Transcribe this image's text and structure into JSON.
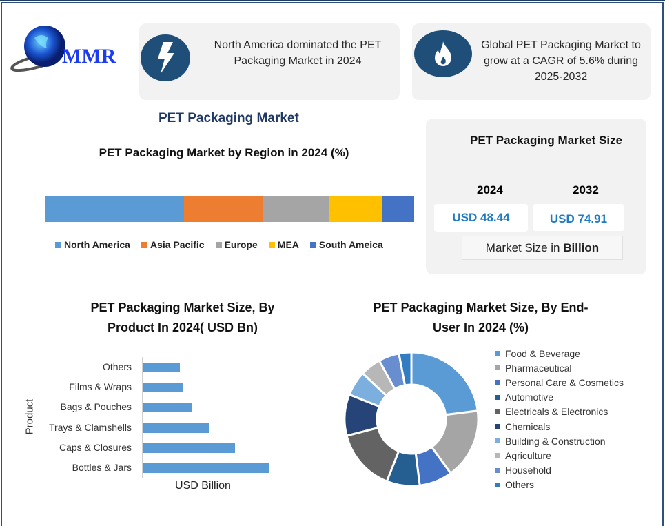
{
  "logo": {
    "text": "MMR"
  },
  "cards": [
    {
      "icon": "lightning-icon",
      "text": "North America dominated the PET Packaging Market in 2024"
    },
    {
      "icon": "flame-icon",
      "text": "Global PET Packaging Market to grow at a CAGR of 5.6% during 2025-2032"
    }
  ],
  "main_title": "PET Packaging Market",
  "market_size": {
    "title": "PET Packaging Market Size",
    "years": [
      "2024",
      "2032"
    ],
    "values": [
      "USD 48.44",
      "USD 74.91"
    ],
    "unit_prefix": "Market Size in ",
    "unit_bold": "Billion"
  },
  "colors": {
    "accent": "#1f4e79",
    "title": "#1f3864",
    "value": "#1f7ac2",
    "bar": "#5b9bd5"
  },
  "chart_data": [
    {
      "type": "bar",
      "orientation": "horizontal-stacked",
      "title": "PET Packaging Market by Region in 2024 (%)",
      "categories": [
        "North America",
        "Asia Pacific",
        "Europe",
        "MEA",
        "South Ameica"
      ],
      "values": [
        37.5,
        21.5,
        18.0,
        14.2,
        8.8
      ],
      "colors": [
        "#5b9bd5",
        "#ed7d31",
        "#a5a5a5",
        "#ffc000",
        "#4472c4"
      ],
      "legend": "bottom"
    },
    {
      "type": "bar",
      "orientation": "horizontal",
      "title": "PET Packaging Market Size, By Product In 2024( USD Bn)",
      "categories": [
        "Others",
        "Films & Wraps",
        "Bags & Pouches",
        "Trays & Clamshells",
        "Caps & Closures",
        "Bottles & Jars"
      ],
      "values": [
        4.4,
        4.8,
        5.8,
        7.8,
        10.9,
        14.8
      ],
      "xlabel": "USD Billion",
      "ylabel": "Product",
      "xlim": [
        0,
        15
      ],
      "grid": false
    },
    {
      "type": "pie",
      "style": "donut",
      "title": "PET Packaging Market Size, By End-User In 2024 (%)",
      "categories": [
        "Food & Beverage",
        "Pharmaceutical",
        "Personal Care & Cosmetics",
        "Automotive",
        "Electricals & Electronics",
        "Chemicals",
        "Building & Construction",
        "Agriculture",
        "Household",
        "Others"
      ],
      "values": [
        23,
        17,
        8,
        8,
        15,
        10,
        6,
        5,
        5,
        3
      ],
      "colors": [
        "#5b9bd5",
        "#a5a5a5",
        "#4472c4",
        "#255e91",
        "#636363",
        "#264478",
        "#7cafdd",
        "#b7b7b7",
        "#698ed0",
        "#327dc2"
      ],
      "legend": "right"
    }
  ]
}
